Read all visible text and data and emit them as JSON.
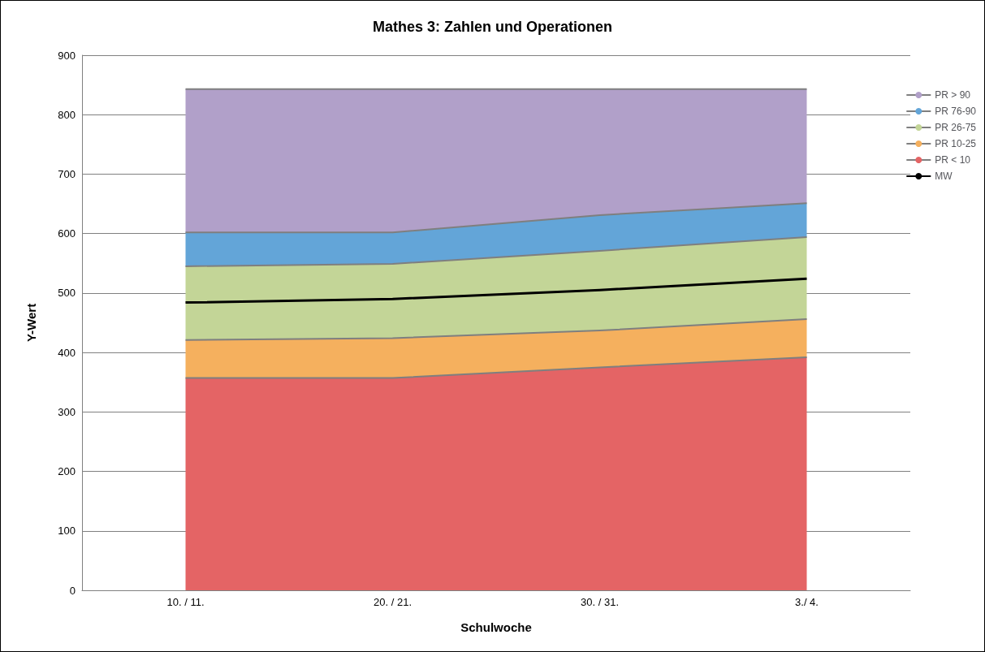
{
  "chart_data": {
    "type": "area",
    "title": "Mathes 3: Zahlen und Operationen",
    "xlabel": "Schulwoche",
    "ylabel": "Y-Wert",
    "categories": [
      "10. / 11.",
      "20. / 21.",
      "30. / 31.",
      "3./ 4."
    ],
    "stacked": true,
    "series": [
      {
        "name": "PR < 10",
        "color": "#e46465",
        "values": [
          357,
          357,
          375,
          392
        ]
      },
      {
        "name": "PR 10-25",
        "color": "#f5b05e",
        "values": [
          64,
          67,
          62,
          64
        ]
      },
      {
        "name": "PR 26-75",
        "color": "#c3d597",
        "values": [
          124,
          125,
          134,
          138
        ]
      },
      {
        "name": "PR 76-90",
        "color": "#63a5d8",
        "values": [
          57,
          53,
          60,
          57
        ]
      },
      {
        "name": "PR > 90",
        "color": "#b1a0c9",
        "values": [
          241,
          241,
          212,
          192
        ]
      },
      {
        "name": "MW",
        "type": "line",
        "color": "#000000",
        "values": [
          484,
          490,
          505,
          524
        ]
      }
    ],
    "ylim": [
      0,
      900
    ],
    "yticks": [
      0,
      100,
      200,
      300,
      400,
      500,
      600,
      700,
      800,
      900
    ],
    "grid": "y",
    "legend": "right",
    "marker": "none"
  }
}
